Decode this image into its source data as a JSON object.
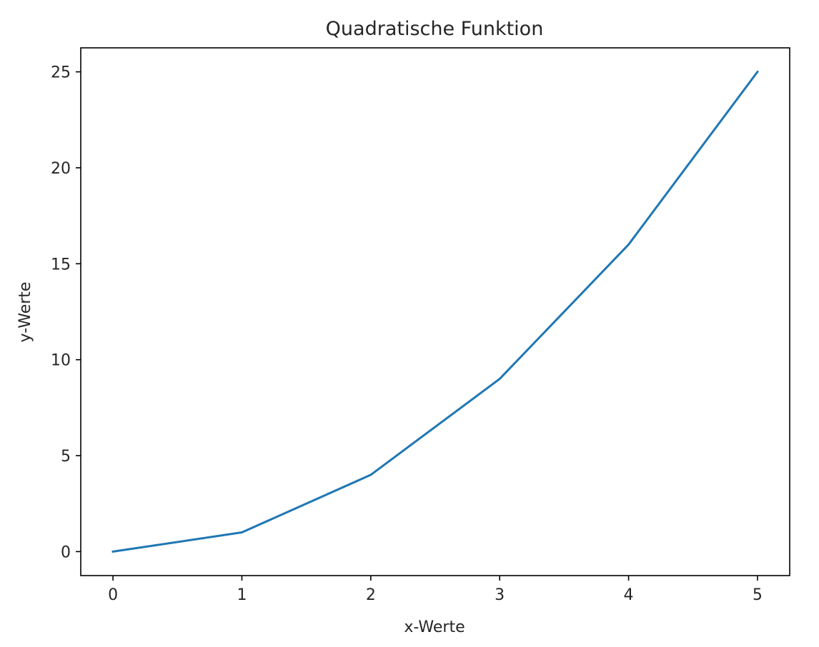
{
  "chart_data": {
    "type": "line",
    "title": "Quadratische Funktion",
    "xlabel": "x-Werte",
    "ylabel": "y-Werte",
    "x": [
      0,
      1,
      2,
      3,
      4,
      5
    ],
    "series": [
      {
        "values": [
          0,
          1,
          4,
          9,
          16,
          25
        ],
        "color": "#1f77b4"
      }
    ],
    "xlim": [
      -0.25,
      5.25
    ],
    "ylim": [
      -1.25,
      26.25
    ],
    "xticks": [
      0,
      1,
      2,
      3,
      4,
      5
    ],
    "yticks": [
      0,
      5,
      10,
      15,
      20,
      25
    ],
    "grid": false,
    "legend": "none"
  }
}
